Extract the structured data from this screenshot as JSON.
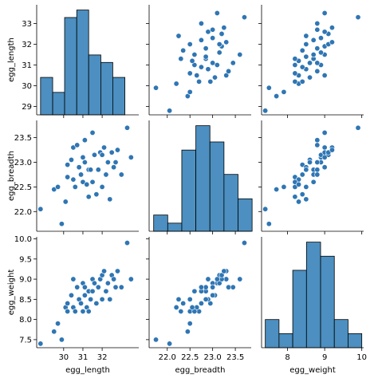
{
  "chart_data": {
    "type": "pairplot",
    "variables": [
      "egg_length",
      "egg_breadth",
      "egg_weight"
    ],
    "axis_labels": {
      "x": [
        "egg_length",
        "egg_breadth",
        "egg_weight"
      ],
      "y": [
        "egg_length",
        "egg_breadth",
        "egg_weight"
      ]
    },
    "ranges": {
      "egg_length": [
        28.6,
        33.9
      ],
      "egg_breadth": [
        21.6,
        23.85
      ],
      "egg_weight": [
        7.3,
        10.05
      ]
    },
    "ticks": {
      "x": [
        [
          30,
          31,
          32
        ],
        [
          22.0,
          22.5,
          23.0,
          23.5
        ],
        [
          8,
          9,
          10
        ]
      ],
      "y": [
        [
          29,
          30,
          31,
          32,
          33
        ],
        [
          22.0,
          22.5,
          23.0,
          23.5
        ],
        [
          7.5,
          8.0,
          8.5,
          9.0,
          9.5,
          10.0
        ]
      ]
    },
    "tick_labels": {
      "x": [
        [
          "30",
          "31",
          "32"
        ],
        [
          "22.0",
          "22.5",
          "23.0",
          "23.5"
        ],
        [
          "8",
          "9",
          "10"
        ]
      ],
      "y": [
        [
          "29",
          "30",
          "31",
          "32",
          "33"
        ],
        [
          "22.0",
          "22.5",
          "23.0",
          "23.5"
        ],
        [
          "7.5",
          "8.0",
          "8.5",
          "9.0",
          "9.5",
          "10.0"
        ]
      ]
    },
    "histograms": [
      {
        "variable": "egg_length",
        "bins": [
          28.8,
          29.43,
          30.05,
          30.68,
          31.3,
          31.93,
          32.55,
          33.18
        ],
        "counts": [
          5,
          3,
          13,
          14,
          8,
          7,
          5
        ]
      },
      {
        "variable": "egg_breadth",
        "bins": [
          21.7,
          22.01,
          22.32,
          22.63,
          22.94,
          23.25,
          23.56,
          23.87
        ],
        "counts": [
          2,
          1,
          10,
          13,
          11,
          7,
          4
        ]
      },
      {
        "variable": "egg_weight",
        "bins": [
          7.4,
          7.77,
          8.14,
          8.51,
          8.89,
          9.26,
          9.63,
          10.0
        ],
        "counts": [
          4,
          2,
          11,
          15,
          13,
          4,
          2
        ]
      }
    ],
    "points": {
      "egg_length": [
        28.8,
        29.5,
        29.7,
        29.9,
        30.1,
        30.2,
        30.2,
        30.4,
        30.5,
        30.5,
        30.6,
        30.7,
        30.8,
        30.9,
        31.0,
        31.0,
        31.1,
        31.1,
        31.2,
        31.3,
        31.3,
        31.4,
        31.5,
        31.5,
        31.6,
        31.7,
        31.8,
        31.9,
        32.0,
        32.0,
        32.1,
        32.2,
        32.3,
        32.4,
        32.5,
        32.6,
        32.7,
        32.8,
        33.0,
        33.3,
        33.5
      ],
      "egg_breadth": [
        22.05,
        22.45,
        22.5,
        21.75,
        22.2,
        22.7,
        22.95,
        23.05,
        22.65,
        23.3,
        22.5,
        23.35,
        22.9,
        22.75,
        23.1,
        22.6,
        23.45,
        23.0,
        22.55,
        22.85,
        22.3,
        22.85,
        23.6,
        22.6,
        23.15,
        22.35,
        22.85,
        23.2,
        22.5,
        23.15,
        23.3,
        22.75,
        23.0,
        22.25,
        23.2,
        22.9,
        23.0,
        23.25,
        22.75,
        23.7,
        23.1
      ],
      "egg_weight": [
        7.4,
        7.7,
        7.9,
        7.5,
        8.3,
        8.2,
        8.4,
        8.6,
        8.3,
        9.0,
        8.2,
        8.8,
        8.5,
        8.4,
        8.9,
        8.2,
        8.8,
        8.6,
        8.3,
        8.7,
        8.2,
        8.5,
        9.0,
        8.7,
        8.9,
        8.4,
        8.8,
        9.0,
        8.5,
        9.1,
        9.2,
        8.7,
        8.9,
        8.5,
        9.1,
        9.0,
        8.8,
        9.2,
        8.8,
        9.9,
        9.0
      ]
    }
  }
}
